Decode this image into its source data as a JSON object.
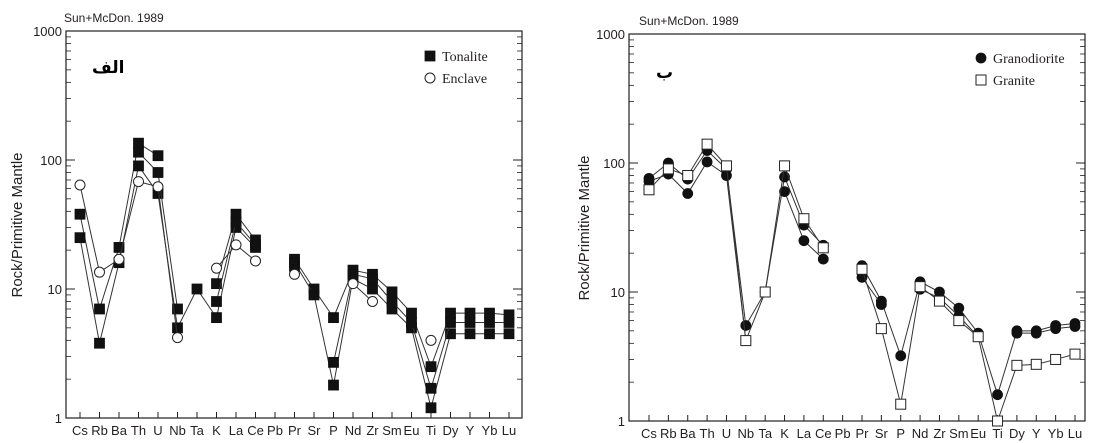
{
  "chart_data": [
    {
      "type": "line",
      "ref_label": "Sun+McDon. 1989",
      "panel_label": "الف",
      "ylabel": "Rock/Primitive Mantle",
      "y_scale": "log",
      "ylim": [
        1,
        1000
      ],
      "y_ticks": [
        "1",
        "10",
        "100",
        "1000"
      ],
      "categories": [
        "Cs",
        "Rb",
        "Ba",
        "Th",
        "U",
        "Nb",
        "Ta",
        "K",
        "La",
        "Ce",
        "Pb",
        "Pr",
        "Sr",
        "P",
        "Nd",
        "Zr",
        "Sm",
        "Eu",
        "Ti",
        "Dy",
        "Y",
        "Yb",
        "Lu"
      ],
      "legend": [
        {
          "label": "Tonalite",
          "marker": "filled-square"
        },
        {
          "label": "Enclave",
          "marker": "open-circle"
        }
      ],
      "series": [
        {
          "group": "Tonalite",
          "marker": "filled-square",
          "values": [
            38,
            7,
            21,
            135,
            108,
            null,
            null,
            11,
            38,
            24,
            null,
            17,
            10,
            6,
            14,
            13,
            9.5,
            6.5,
            2.5,
            6.5,
            6.5,
            6.5,
            6.3
          ]
        },
        {
          "group": "Tonalite",
          "marker": "filled-square",
          "values": [
            25,
            3.8,
            16,
            90,
            55,
            5,
            10,
            6,
            30,
            21,
            null,
            16,
            9,
            1.8,
            12,
            10,
            7,
            5,
            1.2,
            4.5,
            4.5,
            4.5,
            4.5
          ]
        },
        {
          "group": "Tonalite",
          "marker": "filled-square",
          "values": [
            null,
            null,
            null,
            115,
            80,
            7,
            null,
            8,
            33,
            22,
            null,
            15,
            null,
            2.7,
            13,
            12,
            8,
            5.5,
            1.7,
            5.5,
            5.5,
            5.5,
            5.5
          ]
        },
        {
          "group": "Enclave",
          "marker": "open-circle",
          "values": [
            64,
            13.5,
            17,
            68,
            62,
            4.2,
            null,
            14.5,
            22,
            16.5,
            null,
            13,
            null,
            null,
            11,
            8,
            null,
            null,
            4,
            null,
            null,
            null,
            null
          ]
        }
      ]
    },
    {
      "type": "line",
      "ref_label": "Sun+McDon. 1989",
      "panel_label": "ب",
      "ylabel": "Rock/Primitive Mantle",
      "y_scale": "log",
      "ylim": [
        1,
        1000
      ],
      "y_ticks": [
        "1",
        "10",
        "100",
        "1000"
      ],
      "categories": [
        "Cs",
        "Rb",
        "Ba",
        "Th",
        "U",
        "Nb",
        "Ta",
        "K",
        "La",
        "Ce",
        "Pb",
        "Pr",
        "Sr",
        "P",
        "Nd",
        "Zr",
        "Sm",
        "Eu",
        "Ti",
        "Dy",
        "Y",
        "Yb",
        "Lu"
      ],
      "legend": [
        {
          "label": "Granodiorite",
          "marker": "filled-circle"
        },
        {
          "label": "Granite",
          "marker": "open-square"
        }
      ],
      "series": [
        {
          "group": "Granodiorite",
          "marker": "filled-circle",
          "values": [
            76,
            100,
            75,
            125,
            90,
            5.5,
            10,
            78,
            33,
            23,
            null,
            16,
            8.5,
            3.2,
            12,
            10,
            7.5,
            4.8,
            1.6,
            5,
            5,
            5.5,
            5.7
          ]
        },
        {
          "group": "Granodiorite",
          "marker": "filled-circle",
          "values": [
            72,
            82,
            58,
            102,
            80,
            4.2,
            null,
            60,
            25,
            18,
            null,
            13,
            8,
            null,
            10.5,
            9,
            6.5,
            4.5,
            null,
            4.8,
            4.8,
            5.2,
            5.4
          ]
        },
        {
          "group": "Granite",
          "marker": "open-square",
          "values": [
            62,
            90,
            80,
            140,
            95,
            4.2,
            10,
            95,
            37,
            22,
            null,
            15,
            5.2,
            1.35,
            11,
            8.5,
            6,
            4.5,
            1,
            2.7,
            2.75,
            3,
            3.3
          ]
        }
      ]
    }
  ]
}
